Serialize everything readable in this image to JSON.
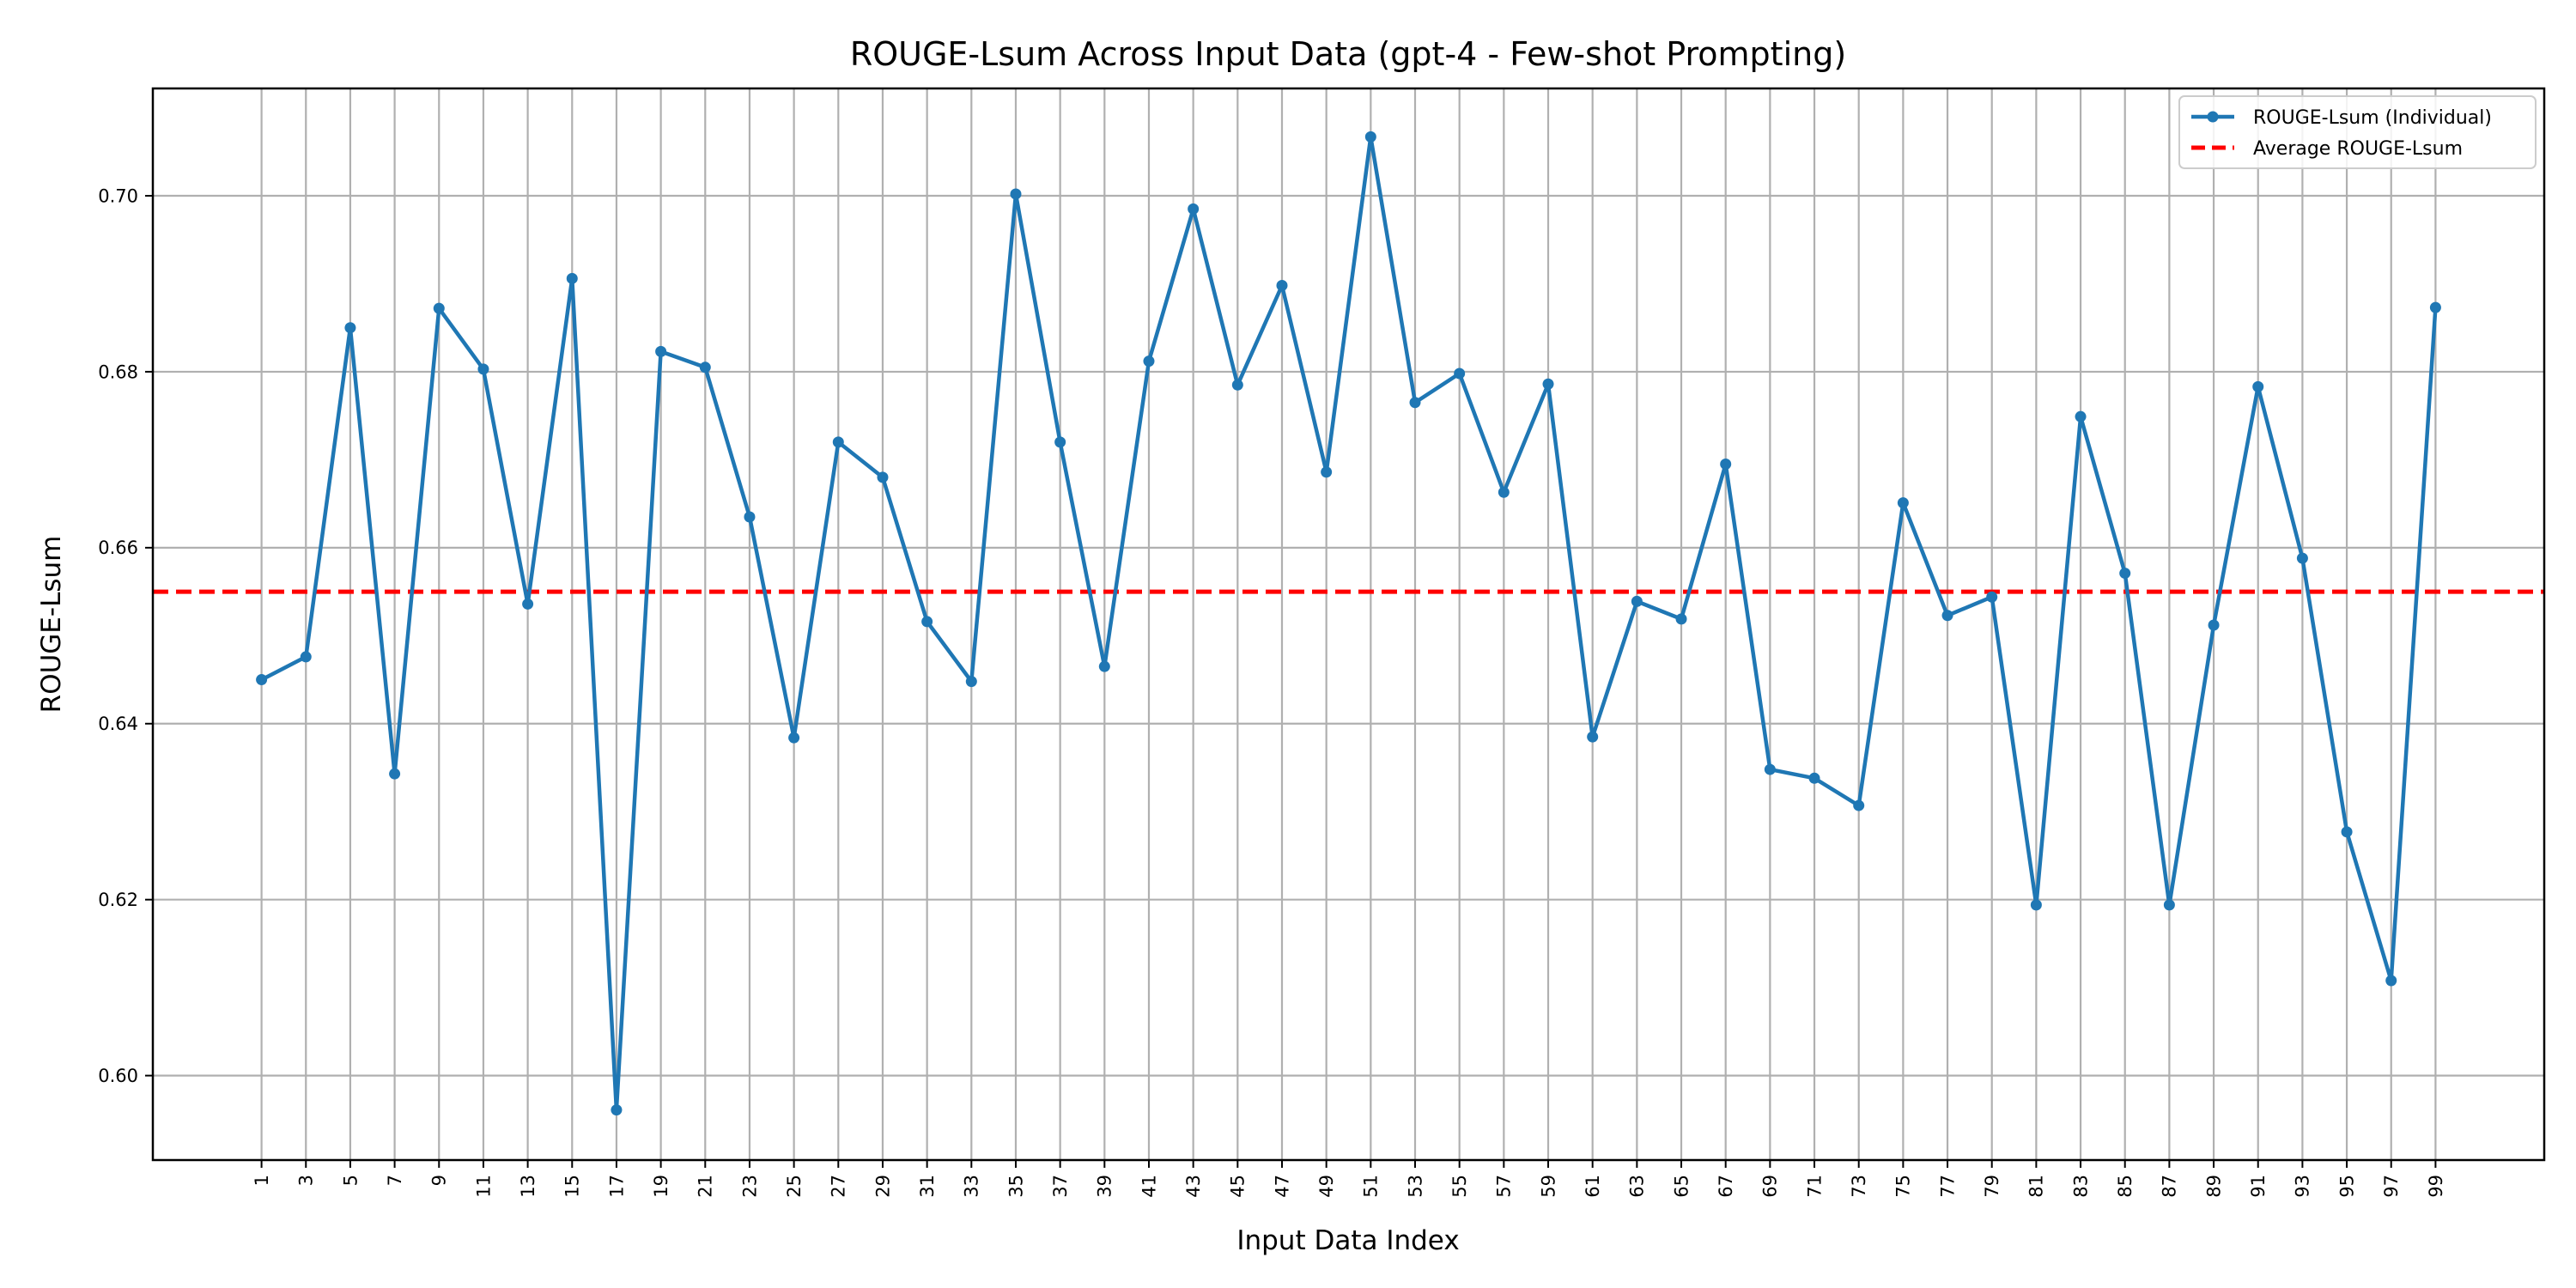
{
  "chart_data": {
    "type": "line",
    "title": "ROUGE-Lsum Across Input Data (gpt-4 - Few-shot Prompting)",
    "xlabel": "Input Data Index",
    "ylabel": "ROUGE-Lsum",
    "x": [
      1,
      3,
      5,
      7,
      9,
      11,
      13,
      15,
      17,
      19,
      21,
      23,
      25,
      27,
      29,
      31,
      33,
      35,
      37,
      39,
      41,
      43,
      45,
      47,
      49,
      51,
      53,
      55,
      57,
      59,
      61,
      63,
      65,
      67,
      69,
      71,
      73,
      75,
      77,
      79,
      81,
      83,
      85,
      87,
      89,
      91,
      93,
      95,
      97,
      99
    ],
    "x_tick_labels": [
      "1",
      "3",
      "5",
      "7",
      "9",
      "11",
      "13",
      "15",
      "17",
      "19",
      "21",
      "23",
      "25",
      "27",
      "29",
      "31",
      "33",
      "35",
      "37",
      "39",
      "41",
      "43",
      "45",
      "47",
      "49",
      "51",
      "53",
      "55",
      "57",
      "59",
      "61",
      "63",
      "65",
      "67",
      "69",
      "71",
      "73",
      "75",
      "77",
      "79",
      "81",
      "83",
      "85",
      "87",
      "89",
      "91",
      "93",
      "95",
      "97",
      "99"
    ],
    "xlim": [
      -3.9,
      103.9
    ],
    "ylim": [
      0.5904,
      0.7122
    ],
    "y_ticks": [
      0.6,
      0.62,
      0.64,
      0.66,
      0.68,
      0.7
    ],
    "y_tick_labels": [
      "0.60",
      "0.62",
      "0.64",
      "0.66",
      "0.68",
      "0.70"
    ],
    "series": [
      {
        "name": "ROUGE-Lsum (Individual)",
        "color": "#1f77b4",
        "style": "solid",
        "marker": "circle",
        "values": [
          0.645,
          0.6476,
          0.685,
          0.6343,
          0.6872,
          0.6803,
          0.6536,
          0.6906,
          0.5961,
          0.6823,
          0.6805,
          0.6635,
          0.6384,
          0.672,
          0.668,
          0.6516,
          0.6448,
          0.7002,
          0.672,
          0.6465,
          0.6812,
          0.6985,
          0.6785,
          0.6898,
          0.6686,
          0.7067,
          0.6765,
          0.6798,
          0.6663,
          0.6786,
          0.6385,
          0.6539,
          0.6519,
          0.6695,
          0.6348,
          0.6338,
          0.6307,
          0.6651,
          0.6523,
          0.6544,
          0.6194,
          0.6749,
          0.6571,
          0.6194,
          0.6512,
          0.6783,
          0.6588,
          0.6277,
          0.6108,
          0.6873
        ]
      },
      {
        "name": "Average ROUGE-Lsum",
        "color": "#ff0000",
        "style": "dashed",
        "constant": 0.655
      }
    ],
    "grid": true,
    "legend_position": "top-right"
  }
}
